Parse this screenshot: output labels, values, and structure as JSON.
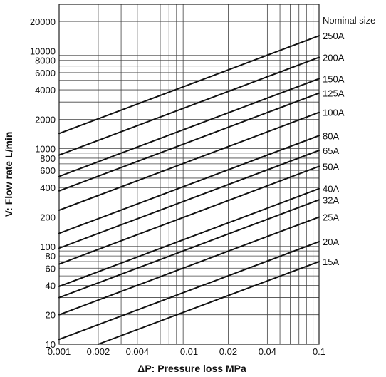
{
  "chart_data": {
    "type": "line",
    "xlabel": "ΔP: Pressure loss MPa",
    "ylabel": "V: Flow rate L/min",
    "x_scale": "log",
    "y_scale": "log",
    "xlim": [
      0.001,
      0.1
    ],
    "ylim": [
      10,
      30000
    ],
    "grid": true,
    "x_tick_labels": [
      "0.001",
      "0.002",
      "0.004",
      "0.01",
      "0.02",
      "0.04",
      "0.1"
    ],
    "x_tick_values": [
      0.001,
      0.002,
      0.004,
      0.01,
      0.02,
      0.04,
      0.1
    ],
    "y_tick_labels": [
      "20000",
      "10000",
      "8000",
      "6000",
      "4000",
      "2000",
      "1000",
      "800",
      "600",
      "400",
      "200",
      "100",
      "80",
      "60",
      "40",
      "20",
      "10"
    ],
    "y_tick_values": [
      20000,
      10000,
      8000,
      6000,
      4000,
      2000,
      1000,
      800,
      600,
      400,
      200,
      100,
      80,
      60,
      40,
      20,
      10
    ],
    "legend_title": "Nominal size",
    "series": [
      {
        "name": "250A",
        "x": [
          0.001,
          0.1
        ],
        "y": [
          1430,
          14300
        ]
      },
      {
        "name": "200A",
        "x": [
          0.001,
          0.1
        ],
        "y": [
          860,
          8600
        ]
      },
      {
        "name": "150A",
        "x": [
          0.001,
          0.1
        ],
        "y": [
          520,
          5200
        ]
      },
      {
        "name": "125A",
        "x": [
          0.001,
          0.1
        ],
        "y": [
          370,
          3700
        ]
      },
      {
        "name": "100A",
        "x": [
          0.001,
          0.1
        ],
        "y": [
          235,
          2350
        ]
      },
      {
        "name": "80A",
        "x": [
          0.001,
          0.1
        ],
        "y": [
          136,
          1360
        ]
      },
      {
        "name": "65A",
        "x": [
          0.001,
          0.1
        ],
        "y": [
          96,
          960
        ]
      },
      {
        "name": "50A",
        "x": [
          0.001,
          0.1
        ],
        "y": [
          66,
          660
        ]
      },
      {
        "name": "40A",
        "x": [
          0.001,
          0.1
        ],
        "y": [
          39,
          390
        ]
      },
      {
        "name": "32A",
        "x": [
          0.001,
          0.1
        ],
        "y": [
          30,
          300
        ]
      },
      {
        "name": "25A",
        "x": [
          0.001,
          0.1
        ],
        "y": [
          20,
          200
        ]
      },
      {
        "name": "20A",
        "x": [
          0.001,
          0.1
        ],
        "y": [
          11.2,
          112
        ]
      },
      {
        "name": "15A",
        "x": [
          0.002,
          0.1
        ],
        "y": [
          10,
          70
        ]
      }
    ]
  }
}
